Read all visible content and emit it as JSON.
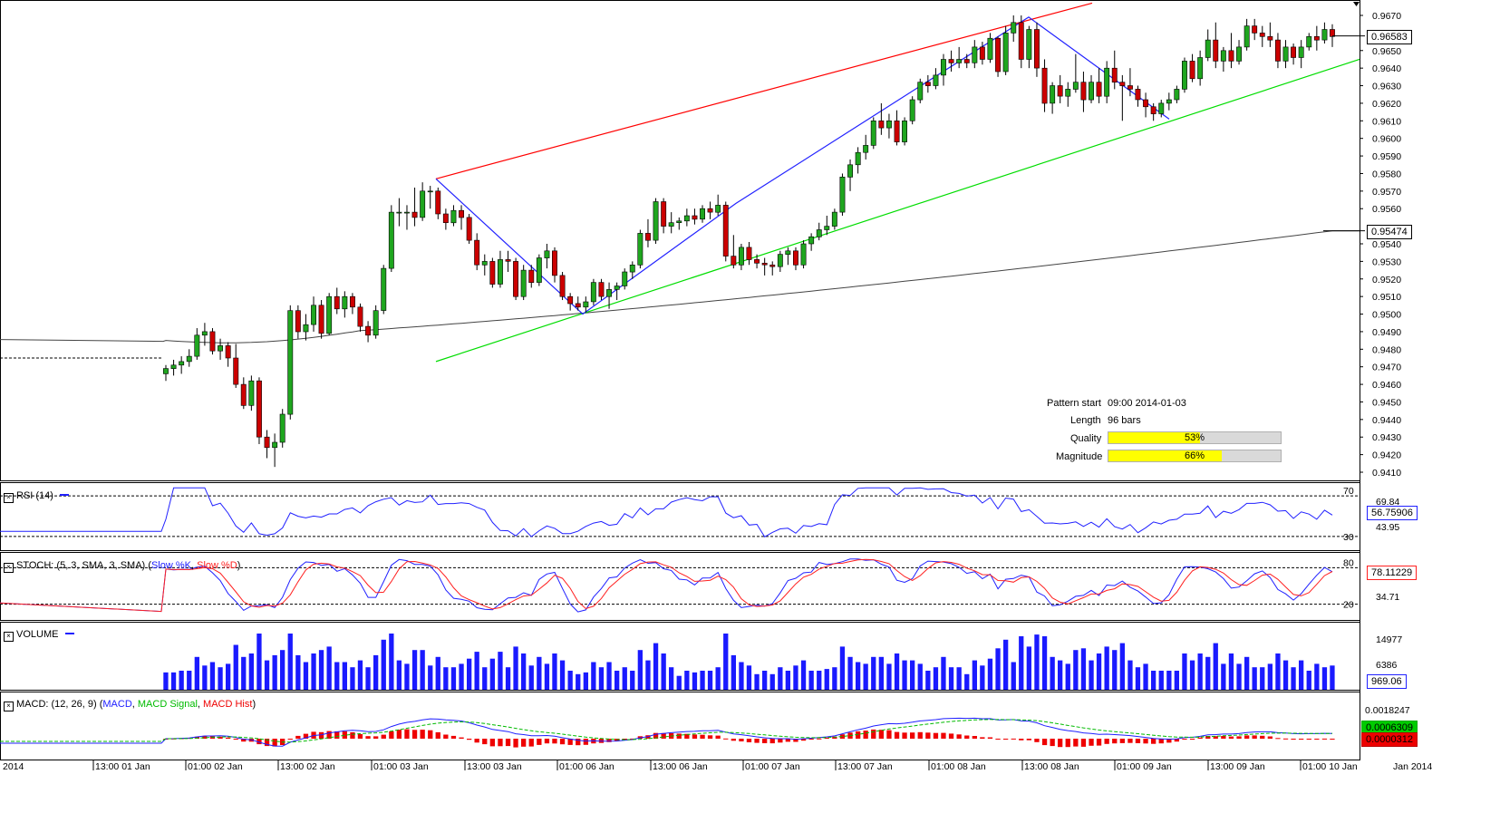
{
  "price_axis": {
    "ticks": [
      "0.9670",
      "0.9650",
      "0.9640",
      "0.9630",
      "0.9620",
      "0.9610",
      "0.9600",
      "0.9590",
      "0.9580",
      "0.9570",
      "0.9560",
      "0.9540",
      "0.9530",
      "0.9520",
      "0.9510",
      "0.9500",
      "0.9490",
      "0.9480",
      "0.9470",
      "0.9460",
      "0.9450",
      "0.9440",
      "0.9430",
      "0.9420",
      "0.9410"
    ],
    "current_price": "0.96583",
    "ma_price": "0.95474"
  },
  "time_axis": {
    "labels": [
      "2014",
      "13:00 01 Jan",
      "01:00 02 Jan",
      "13:00 02 Jan",
      "01:00 03 Jan",
      "13:00 03 Jan",
      "01:00 06 Jan",
      "13:00 06 Jan",
      "01:00 07 Jan",
      "13:00 07 Jan",
      "01:00 08 Jan",
      "13:00 08 Jan",
      "01:00 09 Jan",
      "13:00 09 Jan",
      "01:00 10 Jan",
      "Jan 2014"
    ]
  },
  "pattern_info": {
    "start_label": "Pattern start",
    "start_value": "09:00 2014-01-03",
    "length_label": "Length",
    "length_value": "96 bars",
    "quality_label": "Quality",
    "quality_pct": 53,
    "quality_text": "53%",
    "magnitude_label": "Magnitude",
    "magnitude_pct": 66,
    "magnitude_text": "66%"
  },
  "panels": {
    "rsi": {
      "title": "RSI (14)",
      "level_high": "70",
      "level_low": "30",
      "axis_high": "69.84",
      "axis_low": "43.95",
      "value": "56.75906"
    },
    "stoch": {
      "title_prefix": "STOCH: (5, 3, SMA, 3, SMA)",
      "k_label": "Slow %K",
      "d_label": "Slow %D",
      "level_high": "80",
      "level_low": "20",
      "axis_low": "34.71",
      "value": "78.11229"
    },
    "volume": {
      "title": "VOLUME",
      "axis_high": "14977",
      "axis_mid": "6386",
      "value": "969.06"
    },
    "macd": {
      "title_prefix": "MACD: (12, 26, 9)",
      "macd_label": "MACD",
      "signal_label": "MACD Signal",
      "hist_label": "MACD Hist",
      "axis_high": "0.0018247",
      "value_signal": "0.0006309",
      "value_hist": "0.0000312"
    }
  },
  "colors": {
    "bull": "#1fa61f",
    "bear": "#cc0000",
    "ma": "#444444",
    "channel_top": "#ff0000",
    "channel_bottom": "#00dd00",
    "zigzag": "#2222ff",
    "rsi": "#2020ff",
    "stoch_k": "#2020ff",
    "stoch_d": "#ff2020",
    "volume": "#1a1aff",
    "macd": "#2020ff",
    "signal": "#00bb00",
    "hist": "#ee0000"
  },
  "chart_data": {
    "type": "candlestick",
    "symbol_timeframe": "hourly",
    "ohlc": [
      [
        0.9466,
        0.9471,
        0.9462,
        0.9469
      ],
      [
        0.9469,
        0.9474,
        0.9465,
        0.9471
      ],
      [
        0.9471,
        0.9476,
        0.9466,
        0.9473
      ],
      [
        0.9473,
        0.948,
        0.947,
        0.9476
      ],
      [
        0.9476,
        0.9492,
        0.9474,
        0.9488
      ],
      [
        0.9488,
        0.9495,
        0.9482,
        0.949
      ],
      [
        0.949,
        0.9492,
        0.9477,
        0.9479
      ],
      [
        0.9479,
        0.9486,
        0.9474,
        0.9482
      ],
      [
        0.9482,
        0.9484,
        0.947,
        0.9475
      ],
      [
        0.9475,
        0.9483,
        0.9458,
        0.946
      ],
      [
        0.946,
        0.9464,
        0.9446,
        0.9448
      ],
      [
        0.9448,
        0.9465,
        0.9445,
        0.9462
      ],
      [
        0.9462,
        0.9464,
        0.9426,
        0.943
      ],
      [
        0.943,
        0.9434,
        0.9418,
        0.9424
      ],
      [
        0.9424,
        0.9432,
        0.9413,
        0.9427
      ],
      [
        0.9427,
        0.9446,
        0.9424,
        0.9443
      ],
      [
        0.9443,
        0.9505,
        0.944,
        0.9502
      ],
      [
        0.9502,
        0.9505,
        0.9486,
        0.949
      ],
      [
        0.949,
        0.95,
        0.9485,
        0.9494
      ],
      [
        0.9494,
        0.951,
        0.949,
        0.9505
      ],
      [
        0.9505,
        0.9508,
        0.9486,
        0.9489
      ],
      [
        0.9489,
        0.9512,
        0.9488,
        0.951
      ],
      [
        0.951,
        0.9515,
        0.95,
        0.9503
      ],
      [
        0.9503,
        0.9513,
        0.9498,
        0.951
      ],
      [
        0.951,
        0.9512,
        0.95,
        0.9504
      ],
      [
        0.9504,
        0.9506,
        0.949,
        0.9493
      ],
      [
        0.9493,
        0.9496,
        0.9484,
        0.9488
      ],
      [
        0.9488,
        0.9505,
        0.9486,
        0.9502
      ],
      [
        0.9502,
        0.9528,
        0.95,
        0.9526
      ],
      [
        0.9526,
        0.9562,
        0.9524,
        0.9558
      ],
      [
        0.9558,
        0.9566,
        0.955,
        0.9558
      ],
      [
        0.9558,
        0.9562,
        0.9548,
        0.9558
      ],
      [
        0.9558,
        0.9572,
        0.955,
        0.9555
      ],
      [
        0.9555,
        0.9575,
        0.9553,
        0.957
      ],
      [
        0.957,
        0.9573,
        0.956,
        0.957
      ],
      [
        0.957,
        0.9572,
        0.9554,
        0.9557
      ],
      [
        0.9557,
        0.956,
        0.9548,
        0.9552
      ],
      [
        0.9552,
        0.9562,
        0.955,
        0.9559
      ],
      [
        0.9559,
        0.9562,
        0.9548,
        0.9555
      ],
      [
        0.9555,
        0.9557,
        0.954,
        0.9542
      ],
      [
        0.9542,
        0.9546,
        0.9525,
        0.9528
      ],
      [
        0.9528,
        0.9534,
        0.9522,
        0.953
      ],
      [
        0.953,
        0.9532,
        0.9515,
        0.9517
      ],
      [
        0.9517,
        0.9536,
        0.9515,
        0.9531
      ],
      [
        0.9531,
        0.9536,
        0.9524,
        0.953
      ],
      [
        0.953,
        0.9532,
        0.9508,
        0.951
      ],
      [
        0.951,
        0.9528,
        0.9508,
        0.9525
      ],
      [
        0.9525,
        0.9528,
        0.9515,
        0.9518
      ],
      [
        0.9518,
        0.9534,
        0.9516,
        0.9532
      ],
      [
        0.9532,
        0.954,
        0.9526,
        0.9536
      ],
      [
        0.9536,
        0.9538,
        0.9518,
        0.9522
      ],
      [
        0.9522,
        0.9524,
        0.9508,
        0.951
      ],
      [
        0.951,
        0.9512,
        0.9502,
        0.9506
      ],
      [
        0.9506,
        0.951,
        0.9502,
        0.9504
      ],
      [
        0.9504,
        0.951,
        0.9501,
        0.9507
      ],
      [
        0.9507,
        0.952,
        0.9505,
        0.9518
      ],
      [
        0.9518,
        0.952,
        0.9508,
        0.951
      ],
      [
        0.951,
        0.9518,
        0.9503,
        0.9514
      ],
      [
        0.9514,
        0.9518,
        0.9508,
        0.9516
      ],
      [
        0.9516,
        0.9526,
        0.9514,
        0.9524
      ],
      [
        0.9524,
        0.953,
        0.952,
        0.9528
      ],
      [
        0.9528,
        0.9548,
        0.9526,
        0.9546
      ],
      [
        0.9546,
        0.9554,
        0.9538,
        0.9542
      ],
      [
        0.9542,
        0.9566,
        0.954,
        0.9564
      ],
      [
        0.9564,
        0.9566,
        0.9546,
        0.955
      ],
      [
        0.955,
        0.9558,
        0.9546,
        0.9552
      ],
      [
        0.9552,
        0.9555,
        0.9548,
        0.9553
      ],
      [
        0.9553,
        0.956,
        0.955,
        0.9556
      ],
      [
        0.9556,
        0.956,
        0.9551,
        0.9554
      ],
      [
        0.9554,
        0.9562,
        0.9552,
        0.956
      ],
      [
        0.956,
        0.9564,
        0.9554,
        0.9558
      ],
      [
        0.9558,
        0.9568,
        0.9556,
        0.9562
      ],
      [
        0.9562,
        0.9564,
        0.953,
        0.9533
      ],
      [
        0.9533,
        0.9545,
        0.9526,
        0.9528
      ],
      [
        0.9528,
        0.954,
        0.9525,
        0.9538
      ],
      [
        0.9538,
        0.9541,
        0.9528,
        0.9531
      ],
      [
        0.9531,
        0.9534,
        0.9526,
        0.9529
      ],
      [
        0.9529,
        0.9532,
        0.9522,
        0.9528
      ],
      [
        0.9528,
        0.953,
        0.9522,
        0.9527
      ],
      [
        0.9527,
        0.9536,
        0.9524,
        0.9534
      ],
      [
        0.9534,
        0.9538,
        0.9528,
        0.9536
      ],
      [
        0.9536,
        0.9538,
        0.9525,
        0.9528
      ],
      [
        0.9528,
        0.9542,
        0.9526,
        0.954
      ],
      [
        0.954,
        0.9546,
        0.9536,
        0.9544
      ],
      [
        0.9544,
        0.9552,
        0.9542,
        0.9548
      ],
      [
        0.9548,
        0.9556,
        0.9545,
        0.955
      ],
      [
        0.955,
        0.956,
        0.9548,
        0.9558
      ],
      [
        0.9558,
        0.958,
        0.9556,
        0.9578
      ],
      [
        0.9578,
        0.9588,
        0.957,
        0.9585
      ],
      [
        0.9585,
        0.9595,
        0.958,
        0.9592
      ],
      [
        0.9592,
        0.9602,
        0.9588,
        0.9596
      ],
      [
        0.9596,
        0.9612,
        0.9594,
        0.961
      ],
      [
        0.961,
        0.962,
        0.9602,
        0.9606
      ],
      [
        0.9606,
        0.9614,
        0.96,
        0.961
      ],
      [
        0.961,
        0.9616,
        0.9596,
        0.9598
      ],
      [
        0.9598,
        0.9612,
        0.9596,
        0.961
      ],
      [
        0.961,
        0.9624,
        0.9608,
        0.9622
      ],
      [
        0.9622,
        0.9634,
        0.962,
        0.9632
      ],
      [
        0.9632,
        0.9636,
        0.9626,
        0.963
      ],
      [
        0.963,
        0.964,
        0.9628,
        0.9636
      ],
      [
        0.9636,
        0.9648,
        0.963,
        0.9645
      ],
      [
        0.9645,
        0.965,
        0.9638,
        0.9643
      ],
      [
        0.9643,
        0.9652,
        0.964,
        0.9645
      ],
      [
        0.9645,
        0.9648,
        0.964,
        0.9643
      ],
      [
        0.9643,
        0.9656,
        0.964,
        0.9652
      ],
      [
        0.9652,
        0.9655,
        0.9642,
        0.9645
      ],
      [
        0.9645,
        0.966,
        0.9643,
        0.9657
      ],
      [
        0.9657,
        0.9658,
        0.9635,
        0.9638
      ],
      [
        0.9638,
        0.9664,
        0.9636,
        0.966
      ],
      [
        0.966,
        0.967,
        0.9655,
        0.9666
      ],
      [
        0.9666,
        0.967,
        0.964,
        0.9645
      ],
      [
        0.9645,
        0.9664,
        0.964,
        0.9662
      ],
      [
        0.9662,
        0.9666,
        0.9635,
        0.964
      ],
      [
        0.964,
        0.9645,
        0.9615,
        0.962
      ],
      [
        0.962,
        0.9632,
        0.9614,
        0.963
      ],
      [
        0.963,
        0.9636,
        0.962,
        0.9624
      ],
      [
        0.9624,
        0.9632,
        0.9618,
        0.9628
      ],
      [
        0.9628,
        0.9648,
        0.9626,
        0.9632
      ],
      [
        0.9632,
        0.9638,
        0.9615,
        0.9622
      ],
      [
        0.9622,
        0.9636,
        0.962,
        0.9632
      ],
      [
        0.9632,
        0.964,
        0.962,
        0.9624
      ],
      [
        0.9624,
        0.9644,
        0.962,
        0.964
      ],
      [
        0.964,
        0.965,
        0.9628,
        0.9632
      ],
      [
        0.9632,
        0.9636,
        0.961,
        0.963
      ],
      [
        0.963,
        0.964,
        0.9624,
        0.9628
      ],
      [
        0.9628,
        0.963,
        0.9618,
        0.9622
      ],
      [
        0.9622,
        0.9626,
        0.9612,
        0.9618
      ],
      [
        0.9618,
        0.962,
        0.961,
        0.9614
      ],
      [
        0.9614,
        0.9622,
        0.9612,
        0.962
      ],
      [
        0.962,
        0.9626,
        0.9616,
        0.9622
      ],
      [
        0.9622,
        0.963,
        0.962,
        0.9628
      ],
      [
        0.9628,
        0.9646,
        0.9626,
        0.9644
      ],
      [
        0.9644,
        0.9648,
        0.9632,
        0.9634
      ],
      [
        0.9634,
        0.965,
        0.963,
        0.9646
      ],
      [
        0.9646,
        0.9662,
        0.9644,
        0.9656
      ],
      [
        0.9656,
        0.9666,
        0.964,
        0.9644
      ],
      [
        0.9644,
        0.9652,
        0.9638,
        0.965
      ],
      [
        0.965,
        0.966,
        0.964,
        0.9644
      ],
      [
        0.9644,
        0.9656,
        0.9642,
        0.9652
      ],
      [
        0.9652,
        0.9668,
        0.965,
        0.9664
      ],
      [
        0.9664,
        0.9668,
        0.9656,
        0.966
      ],
      [
        0.966,
        0.9664,
        0.9652,
        0.9658
      ],
      [
        0.9658,
        0.9666,
        0.9652,
        0.9656
      ],
      [
        0.9656,
        0.966,
        0.964,
        0.9644
      ],
      [
        0.9644,
        0.9656,
        0.964,
        0.9652
      ],
      [
        0.9652,
        0.9654,
        0.9642,
        0.9646
      ],
      [
        0.9646,
        0.9656,
        0.964,
        0.9652
      ],
      [
        0.9652,
        0.966,
        0.965,
        0.9658
      ],
      [
        0.9658,
        0.9664,
        0.965,
        0.9656
      ],
      [
        0.9656,
        0.9666,
        0.9654,
        0.9662
      ],
      [
        0.9662,
        0.9665,
        0.9652,
        0.9658
      ]
    ],
    "moving_average": {
      "start": 0.9485,
      "end": 0.95474
    },
    "ylim": [
      0.9405,
      0.9675
    ],
    "rsi_levels": [
      30,
      70
    ],
    "stoch_levels": [
      20,
      80
    ]
  }
}
